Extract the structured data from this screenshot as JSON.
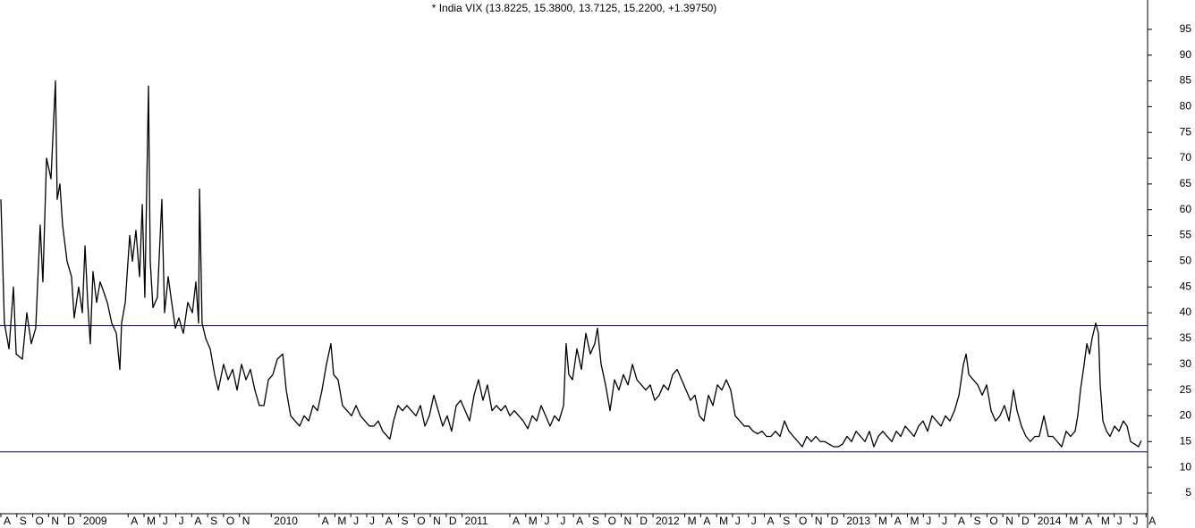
{
  "chart_data": {
    "type": "line",
    "title": "* India VIX (13.8225, 15.3800, 13.7125, 15.2200, +1.39750)",
    "color": "#000000",
    "x": [
      0,
      0.22,
      0.51,
      0.79,
      0.96,
      1.35,
      1.63,
      1.91,
      2.19,
      2.47,
      2.64,
      2.87,
      3.15,
      3.43,
      3.54,
      3.71,
      3.88,
      4.16,
      4.44,
      4.61,
      4.89,
      5.12,
      5.29,
      5.46,
      5.62,
      5.79,
      6.02,
      6.24,
      6.47,
      6.69,
      6.97,
      7.26,
      7.48,
      7.59,
      7.82,
      8.1,
      8.27,
      8.49,
      8.72,
      8.89,
      9.05,
      9.28,
      9.39,
      9.56,
      9.84,
      10.12,
      10.29,
      10.52,
      10.74,
      10.97,
      11.19,
      11.47,
      11.75,
      12.04,
      12.26,
      12.43,
      12.49,
      12.65,
      12.88,
      13.16,
      13.44,
      13.67,
      14.0,
      14.29,
      14.57,
      14.85,
      15.13,
      15.41,
      15.69,
      15.97,
      16.25,
      16.54,
      16.82,
      17.1,
      17.38,
      17.72,
      17.94,
      18.22,
      18.5,
      18.78,
      19.07,
      19.35,
      19.63,
      19.91,
      20.19,
      20.47,
      20.75,
      20.92,
      21.2,
      21.48,
      21.77,
      22.05,
      22.33,
      22.61,
      22.89,
      23.17,
      23.45,
      23.73,
      24.01,
      24.3,
      24.46,
      24.69,
      24.97,
      25.25,
      25.53,
      25.81,
      26.1,
      26.38,
      26.66,
      26.94,
      27.22,
      27.5,
      27.78,
      28.06,
      28.34,
      28.63,
      28.91,
      29.19,
      29.47,
      29.75,
      30.03,
      30.31,
      30.59,
      30.88,
      31.16,
      31.44,
      31.72,
      32.0,
      32.28,
      32.56,
      32.84,
      33.13,
      33.41,
      33.69,
      33.97,
      34.25,
      34.53,
      34.81,
      35.09,
      35.38,
      35.54,
      35.71,
      35.94,
      36.22,
      36.5,
      36.78,
      37.06,
      37.34,
      37.51,
      37.74,
      38.02,
      38.3,
      38.58,
      38.86,
      39.14,
      39.43,
      39.71,
      39.99,
      40.27,
      40.55,
      40.83,
      41.11,
      41.39,
      41.67,
      41.96,
      42.24,
      42.52,
      42.8,
      43.08,
      43.36,
      43.64,
      43.92,
      44.2,
      44.49,
      44.77,
      45.05,
      45.33,
      45.61,
      45.89,
      46.17,
      46.46,
      46.74,
      47.02,
      47.3,
      47.58,
      47.86,
      48.14,
      48.42,
      48.7,
      48.99,
      49.27,
      49.55,
      49.83,
      50.11,
      50.39,
      50.67,
      50.96,
      51.24,
      51.52,
      51.8,
      52.08,
      52.36,
      52.64,
      52.92,
      53.2,
      53.49,
      53.77,
      54.05,
      54.33,
      54.61,
      54.89,
      55.17,
      55.45,
      55.73,
      56.02,
      56.3,
      56.58,
      56.86,
      57.14,
      57.42,
      57.7,
      57.98,
      58.27,
      58.55,
      58.83,
      59.11,
      59.39,
      59.67,
      59.96,
      60.24,
      60.52,
      60.69,
      60.86,
      61.14,
      61.42,
      61.7,
      61.98,
      62.26,
      62.54,
      62.82,
      63.1,
      63.39,
      63.67,
      63.89,
      64.17,
      64.45,
      64.73,
      65.01,
      65.29,
      65.58,
      65.86,
      66.14,
      66.42,
      66.7,
      66.98,
      67.26,
      67.54,
      67.71,
      67.88,
      68.11,
      68.28,
      68.45,
      68.61,
      68.84,
      69.01,
      69.12,
      69.29,
      69.52,
      69.74,
      70.02,
      70.3,
      70.58,
      70.81,
      71.03,
      71.29,
      71.53,
      71.7
    ],
    "values": [
      62,
      38,
      33,
      45,
      32,
      31,
      40,
      34,
      37,
      57,
      46,
      70,
      66,
      85,
      62,
      65,
      57,
      50,
      47,
      39,
      45,
      40,
      53,
      42,
      34,
      48,
      42,
      46,
      44,
      42,
      38,
      36,
      29,
      38,
      42,
      55,
      50,
      56,
      47,
      61,
      43,
      84,
      50,
      41,
      43,
      62,
      40,
      47,
      42,
      37,
      39,
      36,
      42,
      40,
      46,
      38,
      64,
      38,
      35,
      33,
      28,
      25,
      30,
      27,
      29,
      25,
      30,
      27,
      29,
      25,
      22,
      22,
      27,
      28,
      31,
      32,
      25,
      20,
      19,
      18,
      20,
      19,
      22,
      21,
      25,
      30,
      34,
      28,
      27,
      22,
      21,
      20,
      22,
      20,
      19,
      18,
      18,
      19,
      17,
      16,
      15.5,
      19,
      22,
      21,
      22,
      21,
      20,
      22,
      18,
      20,
      24,
      21,
      18,
      20,
      17,
      22,
      23,
      21,
      19,
      24,
      27,
      23,
      26,
      21,
      22,
      21,
      22,
      20,
      21,
      20,
      19,
      17.5,
      20,
      19,
      22,
      20,
      18,
      20,
      19,
      22,
      34,
      28,
      27,
      33,
      29,
      36,
      32,
      34,
      37,
      30,
      26,
      21,
      27,
      25,
      28,
      26,
      30,
      27,
      26,
      25,
      26,
      23,
      24,
      26,
      25,
      28,
      29,
      27,
      25,
      23,
      24,
      20,
      19,
      24,
      22,
      26,
      25,
      27,
      25,
      20,
      19,
      18,
      18,
      17,
      16.5,
      17,
      16,
      16,
      17,
      16,
      19,
      17,
      16,
      15,
      14,
      16,
      15,
      16,
      15,
      15,
      14.5,
      14,
      14,
      14.5,
      16,
      15,
      17,
      16,
      15,
      17,
      14,
      16,
      17,
      16,
      15,
      17,
      16,
      18,
      17,
      16,
      18,
      19,
      17,
      20,
      19,
      18,
      20,
      19,
      21,
      24,
      30,
      32,
      28,
      27,
      26,
      24,
      26,
      21,
      19,
      20,
      22,
      19,
      25,
      21,
      18,
      16,
      15,
      16,
      16,
      20,
      16,
      16,
      15,
      14,
      17,
      16,
      17,
      20,
      25,
      30,
      34,
      32,
      35,
      38,
      36,
      26,
      19,
      17,
      16,
      18,
      17,
      19,
      18,
      15,
      14.5,
      14,
      15.2
    ],
    "hlines": [
      37.5,
      13
    ],
    "hline_color": "#000080",
    "xlim": [
      0,
      72.1
    ],
    "ylim": [
      1,
      100.7
    ],
    "yticks": [
      5,
      10,
      15,
      20,
      25,
      30,
      35,
      40,
      45,
      50,
      55,
      60,
      65,
      70,
      75,
      80,
      85,
      90,
      95
    ],
    "xticks": [
      {
        "value": 0,
        "label": "A"
      },
      {
        "value": 1,
        "label": "S"
      },
      {
        "value": 2,
        "label": "O"
      },
      {
        "value": 3,
        "label": "N"
      },
      {
        "value": 4,
        "label": "D"
      },
      {
        "value": 5,
        "label": "2009"
      },
      {
        "value": 8,
        "label": "A"
      },
      {
        "value": 9,
        "label": "M"
      },
      {
        "value": 10,
        "label": "J"
      },
      {
        "value": 11,
        "label": "J"
      },
      {
        "value": 12,
        "label": "A"
      },
      {
        "value": 13,
        "label": "S"
      },
      {
        "value": 14,
        "label": "O"
      },
      {
        "value": 15,
        "label": "N"
      },
      {
        "value": 17,
        "label": "2010"
      },
      {
        "value": 20,
        "label": "A"
      },
      {
        "value": 21,
        "label": "M"
      },
      {
        "value": 22,
        "label": "J"
      },
      {
        "value": 23,
        "label": "J"
      },
      {
        "value": 24,
        "label": "A"
      },
      {
        "value": 25,
        "label": "S"
      },
      {
        "value": 26,
        "label": "O"
      },
      {
        "value": 27,
        "label": "N"
      },
      {
        "value": 28,
        "label": "D"
      },
      {
        "value": 29,
        "label": "2011"
      },
      {
        "value": 32,
        "label": "A"
      },
      {
        "value": 33,
        "label": "M"
      },
      {
        "value": 34,
        "label": "J"
      },
      {
        "value": 35,
        "label": "J"
      },
      {
        "value": 36,
        "label": "A"
      },
      {
        "value": 37,
        "label": "S"
      },
      {
        "value": 38,
        "label": "O"
      },
      {
        "value": 39,
        "label": "N"
      },
      {
        "value": 40,
        "label": "D"
      },
      {
        "value": 41,
        "label": "2012"
      },
      {
        "value": 43,
        "label": "M"
      },
      {
        "value": 44,
        "label": "A"
      },
      {
        "value": 45,
        "label": "M"
      },
      {
        "value": 46,
        "label": "J"
      },
      {
        "value": 47,
        "label": "J"
      },
      {
        "value": 48,
        "label": "A"
      },
      {
        "value": 49,
        "label": "S"
      },
      {
        "value": 50,
        "label": "O"
      },
      {
        "value": 51,
        "label": "N"
      },
      {
        "value": 52,
        "label": "D"
      },
      {
        "value": 53,
        "label": "2013"
      },
      {
        "value": 55,
        "label": "M"
      },
      {
        "value": 56,
        "label": "A"
      },
      {
        "value": 57,
        "label": "M"
      },
      {
        "value": 58,
        "label": "J"
      },
      {
        "value": 59,
        "label": "J"
      },
      {
        "value": 60,
        "label": "A"
      },
      {
        "value": 61,
        "label": "S"
      },
      {
        "value": 62,
        "label": "O"
      },
      {
        "value": 63,
        "label": "N"
      },
      {
        "value": 64,
        "label": "D"
      },
      {
        "value": 65,
        "label": "2014"
      },
      {
        "value": 67,
        "label": "M"
      },
      {
        "value": 68,
        "label": "A"
      },
      {
        "value": 69,
        "label": "M"
      },
      {
        "value": 70,
        "label": "J"
      },
      {
        "value": 71,
        "label": "J"
      },
      {
        "value": 72,
        "label": "A"
      }
    ]
  }
}
